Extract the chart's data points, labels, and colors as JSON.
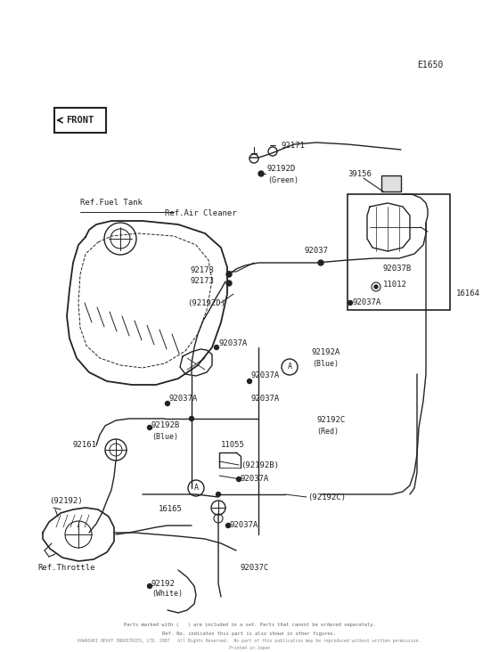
{
  "ref_label": "E1650",
  "background_color": "#ffffff",
  "line_color": "#222222",
  "text_color": "#222222",
  "figsize": [
    5.6,
    7.32
  ],
  "dpi": 100,
  "front_text": "FRONT",
  "footer1": "Parts marked with (   ) are included in a set. Parts that cannot be ordered separately.",
  "footer2": "Ref. No. indicates this part is also shown in other figures.",
  "footer3": "KAWASAKI HEAVY INDUSTRIES, LTD. 2007   All Rights Reserved.  No part of this publication may be reproduced without written permission.",
  "footer4": "Printed in Japan"
}
